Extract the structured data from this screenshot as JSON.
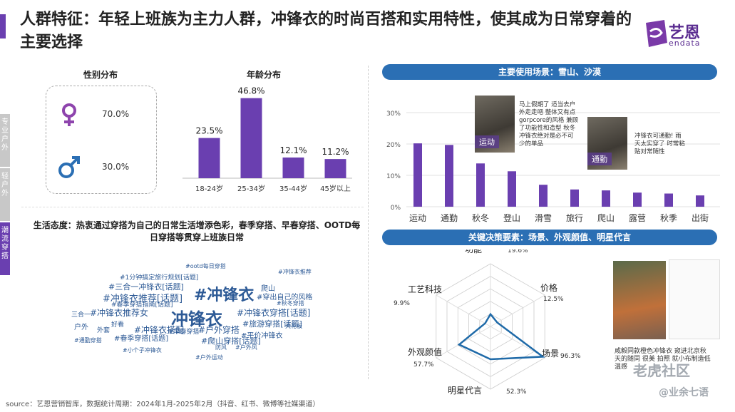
{
  "page": {
    "title": "人群特征：年轻上班族为主力人群，冲锋衣的时尚百搭和实用特性，使其成为日常穿着的主要选择",
    "logo_text": "艺恩",
    "logo_sub": "endata",
    "side_tabs": [
      "专业户外",
      "轻户外",
      "潮流穿搭"
    ],
    "footer": "source：艺恩营销智库，数据统计周期：2024年1月-2025年2月（抖音、红书、微博等社媒渠道）",
    "watermark1": "老虎社区",
    "watermark2": "@业余七语",
    "accent": "#6a3fb0",
    "blue": "#2b6fb4"
  },
  "gender": {
    "title": "性别分布",
    "female_pct": "70.0%",
    "male_pct": "30.0%",
    "female_color": "#8e44ad",
    "male_color": "#2b6fb4",
    "female_icon": "female-icon",
    "male_icon": "male-icon"
  },
  "attitude": {
    "text": "生活态度：热衷通过穿搭为自己的日常生活增添色彩，春季穿搭、早春穿搭、OOTD每日穿搭等贯穿上班族日常"
  },
  "wordcloud": [
    {
      "t": "#冲锋衣",
      "s": 22
    },
    {
      "t": "冲锋衣",
      "s": 24
    },
    {
      "t": "#冲锋衣推荐[话题]",
      "s": 13
    },
    {
      "t": "#三合一冲锋衣[话题]",
      "s": 11
    },
    {
      "t": "#冲锋衣推荐女",
      "s": 12
    },
    {
      "t": "#冲锋衣穿搭[话题]",
      "s": 12
    },
    {
      "t": "#冲锋衣搭配",
      "s": 12
    },
    {
      "t": "#户外穿搭",
      "s": 12
    },
    {
      "t": "#旅游穿搭[话题]",
      "s": 11
    },
    {
      "t": "#春季穿搭[话题]",
      "s": 10
    },
    {
      "t": "#爬山穿搭[话题]",
      "s": 11
    },
    {
      "t": "#平价冲锋衣",
      "s": 10
    },
    {
      "t": "#穿出自己的风格",
      "s": 10
    },
    {
      "t": "#早春穿搭",
      "s": 9
    },
    {
      "t": "#1分钟搞定旅行规划[话题]",
      "s": 9
    },
    {
      "t": "户外",
      "s": 10
    },
    {
      "t": "爬山",
      "s": 10
    },
    {
      "t": "好看",
      "s": 9
    },
    {
      "t": "外套",
      "s": 9
    },
    {
      "t": "三合一",
      "s": 9
    },
    {
      "t": "#春季穿搭指南[话题]",
      "s": 9
    },
    {
      "t": "天花板",
      "s": 8
    },
    {
      "t": "防风",
      "s": 8
    },
    {
      "t": "#户外风",
      "s": 8
    },
    {
      "t": "#小个子冲锋衣",
      "s": 8
    },
    {
      "t": "#秋冬穿搭",
      "s": 8
    },
    {
      "t": "#通勤穿搭",
      "s": 8
    },
    {
      "t": "#ootd每日穿搭",
      "s": 8
    },
    {
      "t": "#冲锋衣推荐",
      "s": 8
    },
    {
      "t": "#户外运动",
      "s": 8
    }
  ],
  "scenes": {
    "title": "主要使用场景：雪山、沙漠",
    "photo1_tag": "运动",
    "photo1_note": "马上假期了 适当去户外走走吧 整体又有点gorpcore的风格 兼顾了功能性和造型 秋冬冲锋衣绝对是必不可少的单品",
    "photo2_tag": "通勤",
    "photo2_note": "冲锋衣可通勤! 雨天太实穿了 时常粘贴对常随性"
  },
  "decision": {
    "title": "关键决策要素：场景、外观颜值、明星代言",
    "photo_note": "咸毅同款橙色冲锋衣 窥进北京秋天的随同 很美 拍照 就小布制造低温感"
  },
  "chart_data": [
    {
      "type": "bar",
      "title": "年龄分布",
      "categories": [
        "18-24岁",
        "25-34岁",
        "35-44岁",
        "45岁以上"
      ],
      "values": [
        23.5,
        46.8,
        12.1,
        11.2
      ],
      "labels": [
        "23.5%",
        "46.8%",
        "12.1%",
        "11.2%"
      ],
      "color": "#6a3fb0",
      "ylim": [
        0,
        50
      ]
    },
    {
      "type": "bar",
      "title": "主要使用场景：雪山、沙漠",
      "categories": [
        "运动",
        "通勤",
        "秋冬",
        "登山",
        "滑雪",
        "旅行",
        "爬山",
        "露营",
        "秋季",
        "出街"
      ],
      "values": [
        20.2,
        19.7,
        13.8,
        11.3,
        7.0,
        5.5,
        5.2,
        4.5,
        4.2,
        3.6
      ],
      "yticks": [
        "0%",
        "10%",
        "20%",
        "30%"
      ],
      "ylim": [
        0,
        30
      ],
      "color": "#6a3fb0",
      "grid": true
    },
    {
      "type": "radar",
      "title": "关键决策要素：场景、外观颜值、明星代言",
      "axes": [
        "功能",
        "价格",
        "场景",
        "明星代言",
        "外观颜值",
        "工艺科技"
      ],
      "values": [
        19.6,
        12.5,
        96.3,
        52.3,
        57.7,
        9.9
      ],
      "labels": [
        "19.6%",
        "12.5%",
        "96.3%",
        "52.3%",
        "57.7%",
        "9.9%"
      ],
      "color": "#1f6aa8"
    }
  ]
}
